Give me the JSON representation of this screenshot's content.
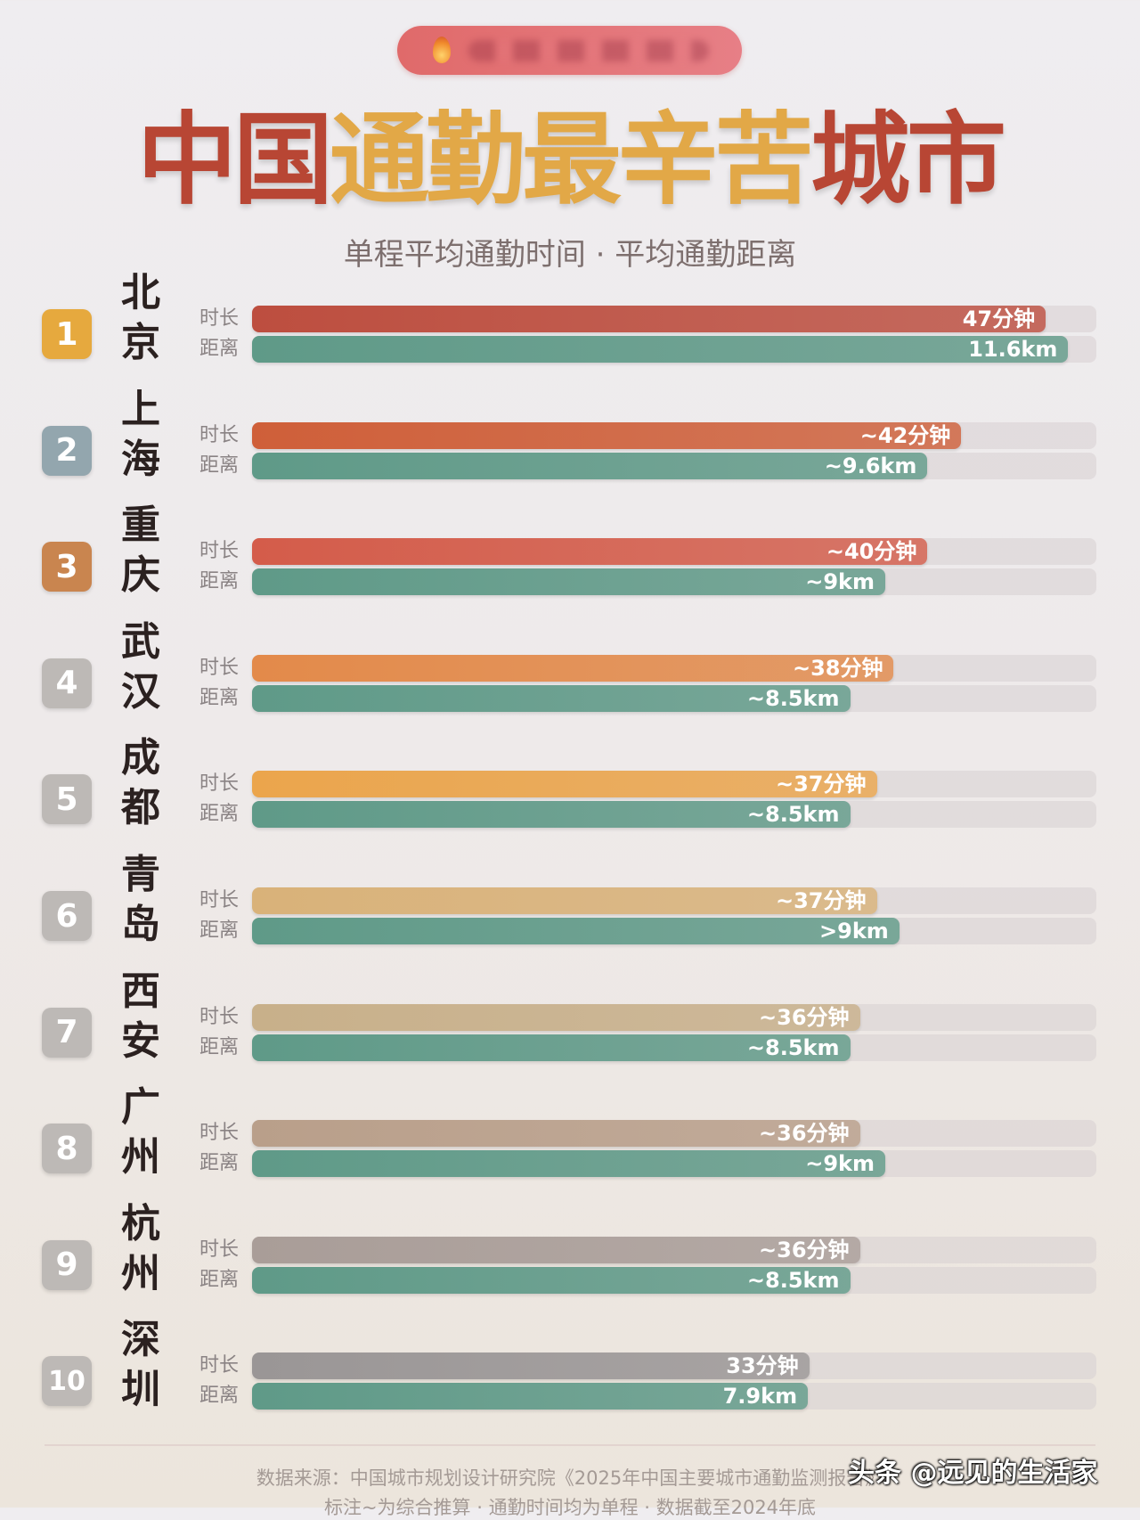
{
  "header": {
    "icon": "flame-icon",
    "title_parts": [
      {
        "text": "中国",
        "color": "#b84634"
      },
      {
        "text": "通勤最辛苦",
        "color": "#e2a847"
      },
      {
        "text": "城市",
        "color": "#b84634"
      }
    ],
    "subtitle": "单程平均通勤时间 · 平均通勤距离"
  },
  "chart_data": {
    "type": "bar",
    "orientation": "horizontal",
    "title": "中国通勤最辛苦城市",
    "subtitle": "单程平均通勤时间 · 平均通勤距离",
    "series_labels": {
      "time": "时长",
      "distance": "距离"
    },
    "time_max": 50,
    "distance_max": 12,
    "rows": [
      {
        "rank": "1",
        "city": "北京",
        "time": 47,
        "time_label": "47分钟",
        "distance": 11.6,
        "distance_label": "11.6km",
        "time_color": "#bd4e3f",
        "badge_color": "#e6a93e"
      },
      {
        "rank": "2",
        "city": "上海",
        "time": 42,
        "time_label": "~42分钟",
        "distance": 9.6,
        "distance_label": "~9.6km",
        "time_color": "#cf5f39",
        "badge_color": "#93a6ae"
      },
      {
        "rank": "3",
        "city": "重庆",
        "time": 40,
        "time_label": "~40分钟",
        "distance": 9,
        "distance_label": "~9km",
        "time_color": "#d45c4a",
        "badge_color": "#c9854f"
      },
      {
        "rank": "4",
        "city": "武汉",
        "time": 38,
        "time_label": "~38分钟",
        "distance": 8.5,
        "distance_label": "~8.5km",
        "time_color": "#e38a4a",
        "badge_color": "#bdb9b6"
      },
      {
        "rank": "5",
        "city": "成都",
        "time": 37,
        "time_label": "~37分钟",
        "distance": 8.5,
        "distance_label": "~8.5km",
        "time_color": "#eba54c",
        "badge_color": "#bdb9b6"
      },
      {
        "rank": "6",
        "city": "青岛",
        "time": 37,
        "time_label": "~37分钟",
        "distance": 9.2,
        "distance_label": ">9km",
        "time_color": "#d9b279",
        "badge_color": "#bdb9b6"
      },
      {
        "rank": "7",
        "city": "西安",
        "time": 36,
        "time_label": "~36分钟",
        "distance": 8.5,
        "distance_label": "~8.5km",
        "time_color": "#c8b08a",
        "badge_color": "#bdb9b6"
      },
      {
        "rank": "8",
        "city": "广州",
        "time": 36,
        "time_label": "~36分钟",
        "distance": 9,
        "distance_label": "~9km",
        "time_color": "#b99f8a",
        "badge_color": "#bdb9b6"
      },
      {
        "rank": "9",
        "city": "杭州",
        "time": 36,
        "time_label": "~36分钟",
        "distance": 8.5,
        "distance_label": "~8.5km",
        "time_color": "#a99d98",
        "badge_color": "#bdb9b6"
      },
      {
        "rank": "10",
        "city": "深圳",
        "time": 33,
        "time_label": "33分钟",
        "distance": 7.9,
        "distance_label": "7.9km",
        "time_color": "#9a9696",
        "badge_color": "#bdb9b6"
      }
    ],
    "distance_color": "#5f9a88"
  },
  "footer": {
    "source": "数据来源：中国城市规划设计研究院《2025年中国主要城市通勤监测报告》",
    "note": "标注~为综合推算 · 通勤时间均为单程 · 数据截至2024年底",
    "watermark": "头条 @远见的生活家"
  }
}
